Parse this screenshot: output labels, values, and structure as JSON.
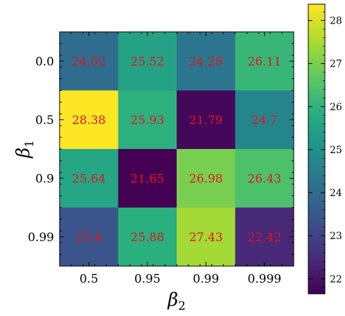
{
  "chart_data": {
    "type": "heatmap",
    "x_categories": [
      "0.5",
      "0.95",
      "0.99",
      "0.999"
    ],
    "y_categories": [
      "0.0",
      "0.5",
      "0.9",
      "0.99"
    ],
    "values": [
      [
        24.02,
        25.52,
        24.28,
        26.11
      ],
      [
        28.38,
        25.93,
        21.79,
        24.7
      ],
      [
        25.64,
        21.65,
        26.98,
        26.43
      ],
      [
        23.4,
        25.88,
        27.43,
        22.42
      ]
    ],
    "value_labels": [
      [
        "24.02",
        "25.52",
        "24.28",
        "26.11"
      ],
      [
        "28.38",
        "25.93",
        "21.79",
        "24.7"
      ],
      [
        "25.64",
        "21.65",
        "26.98",
        "26.43"
      ],
      [
        "23.4",
        "25.88",
        "27.43",
        "22.42"
      ]
    ],
    "xlabel": {
      "symbol": "β",
      "subscript": "2"
    },
    "ylabel": {
      "symbol": "β",
      "subscript": "1"
    },
    "colormap": "viridis",
    "colorbar_range": [
      21.65,
      28.38
    ],
    "colorbar_ticks": [
      "22",
      "23",
      "24",
      "25",
      "26",
      "27",
      "28"
    ],
    "label_color": "#e8111b"
  }
}
